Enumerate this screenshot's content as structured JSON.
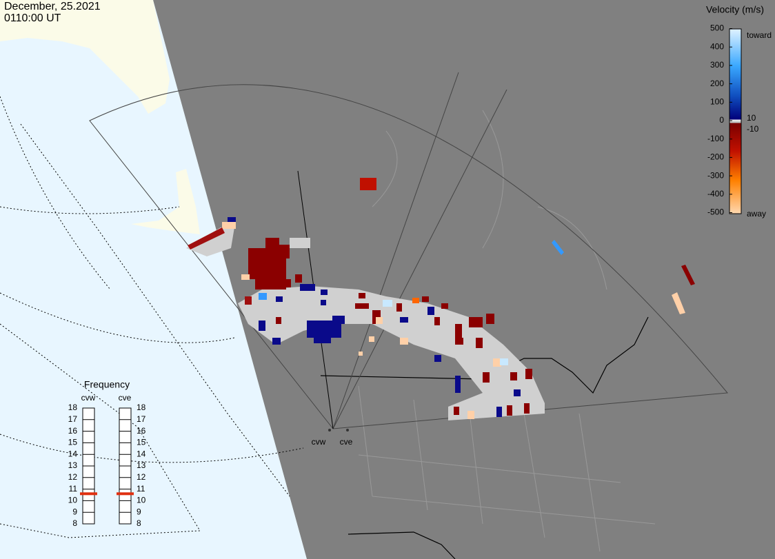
{
  "header": {
    "date": "December, 25.2021",
    "time": "0110:00 UT"
  },
  "velocity_scale": {
    "title": "Velocity (m/s)",
    "ticks": [
      500,
      400,
      300,
      200,
      100,
      0,
      -100,
      -200,
      -300,
      -400,
      -500
    ],
    "near_zero_ticks": [
      10,
      -10
    ],
    "toward_label": "toward",
    "away_label": "away"
  },
  "frequency": {
    "title": "Frequency",
    "ticks": [
      8,
      9,
      10,
      11,
      12,
      13,
      14,
      15,
      16,
      17,
      18
    ],
    "radars": [
      {
        "name": "cvw",
        "value": 10.6
      },
      {
        "name": "cve",
        "value": 10.6
      }
    ]
  },
  "stations": [
    "cvw",
    "cve"
  ]
}
